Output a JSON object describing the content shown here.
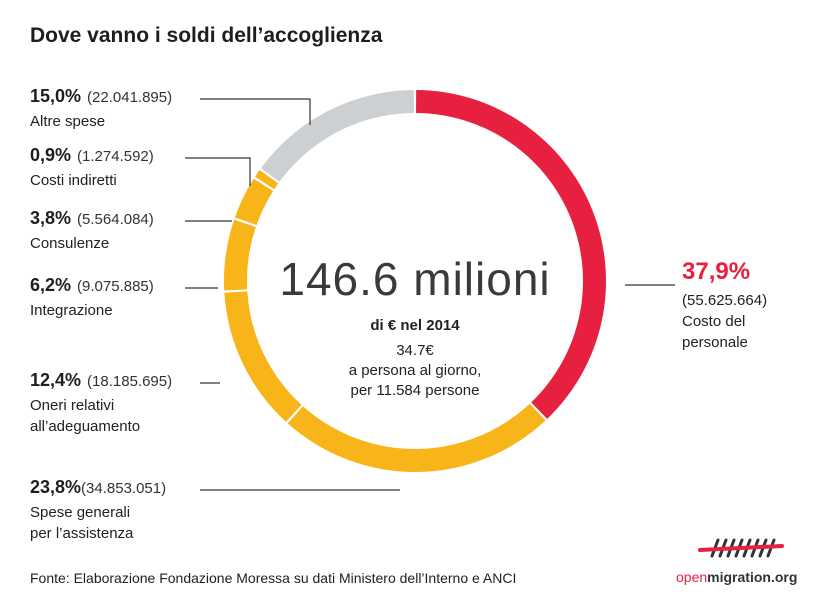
{
  "title": "Dove vanno i soldi dell’accoglienza",
  "center": {
    "total": "146.6 milioni",
    "unit": "di € nel 2014",
    "per_day": "34.7€",
    "per_day_line2": "a persona al giorno,",
    "per_day_line3": "per 11.584 persone"
  },
  "labels": [
    {
      "pct": "15,0%",
      "amount": "(22.041.895)",
      "name1": "Altre spese",
      "name2": ""
    },
    {
      "pct": "0,9%",
      "amount": "(1.274.592)",
      "name1": "Costi indiretti",
      "name2": ""
    },
    {
      "pct": "3,8%",
      "amount": "(5.564.084)",
      "name1": "Consulenze",
      "name2": ""
    },
    {
      "pct": "6,2%",
      "amount": "(9.075.885)",
      "name1": "Integrazione",
      "name2": ""
    },
    {
      "pct": "12,4%",
      "amount": "(18.185.695)",
      "name1": "Oneri relativi",
      "name2": "all’adeguamento"
    },
    {
      "pct": "23,8%",
      "amount": "(34.853.051)",
      "name1": "Spese generali",
      "name2": "per l’assistenza"
    }
  ],
  "highlight": {
    "pct": "37,9%",
    "amount": "(55.625.664)",
    "name1": "Costo del",
    "name2": "personale"
  },
  "source": "Fonte: Elaborazione Fondazione Moressa su dati Ministero dell’Interno e ANCI",
  "logo": {
    "part1": "open",
    "part2": "migration.org",
    "icon": "openmigration-mark-icon"
  },
  "colors": {
    "red": "#e8203f",
    "yellow": "#f8b519",
    "gray": "#cdd0d2"
  },
  "chart_data": {
    "type": "pie",
    "title": "Dove vanno i soldi dell’accoglienza",
    "unit": "€ (2014)",
    "total": 146600000,
    "categories": [
      "Costo del personale",
      "Spese generali per l’assistenza",
      "Oneri relativi all’adeguamento",
      "Integrazione",
      "Consulenze",
      "Costi indiretti",
      "Altre spese"
    ],
    "values": [
      55625664,
      34853051,
      18185695,
      9075885,
      5564084,
      1274592,
      22041895
    ],
    "percentages": [
      37.9,
      23.8,
      12.4,
      6.2,
      3.8,
      0.9,
      15.0
    ],
    "colors": [
      "#e8203f",
      "#f8b519",
      "#f8b519",
      "#f8b519",
      "#f8b519",
      "#f8b519",
      "#cdd0d2"
    ],
    "start": "top, clockwise",
    "donut": true
  }
}
